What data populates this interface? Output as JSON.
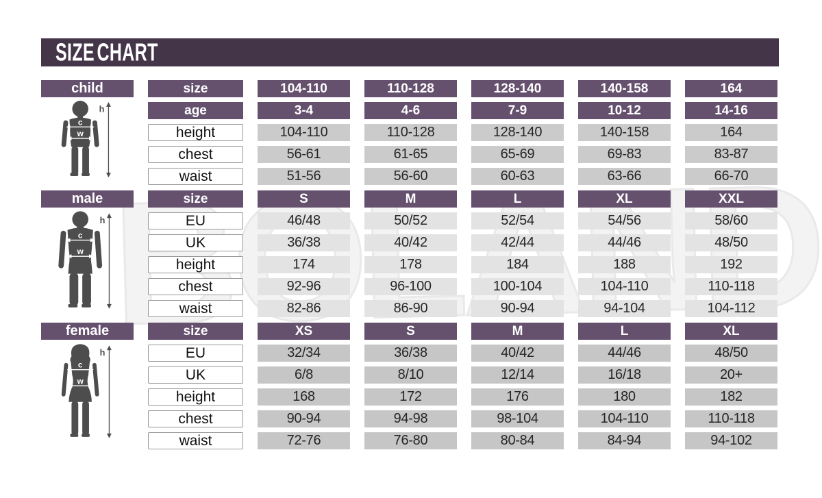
{
  "title": "SIZE CHART",
  "watermark": "BOLAND",
  "figure_labels": {
    "height": "h",
    "chest": "c",
    "waist": "w"
  },
  "colors": {
    "title_bar": "#453549",
    "purple_cell": "#65506e",
    "gray_cell_child": "#cbcbcb",
    "gray_cell_male": "#e3e3e3",
    "gray_cell_female": "#c6c6c6",
    "silhouette": "#4d4d4d"
  },
  "chart_data": [
    {
      "type": "table",
      "title": "child",
      "rows": [
        {
          "label": "size",
          "type": "header",
          "values": [
            "104-110",
            "110-128",
            "128-140",
            "140-158",
            "164"
          ]
        },
        {
          "label": "age",
          "type": "header",
          "values": [
            "3-4",
            "4-6",
            "7-9",
            "10-12",
            "14-16"
          ]
        },
        {
          "label": "height",
          "type": "data",
          "values": [
            "104-110",
            "110-128",
            "128-140",
            "140-158",
            "164"
          ]
        },
        {
          "label": "chest",
          "type": "data",
          "values": [
            "56-61",
            "61-65",
            "65-69",
            "69-83",
            "83-87"
          ]
        },
        {
          "label": "waist",
          "type": "data",
          "values": [
            "51-56",
            "56-60",
            "60-63",
            "63-66",
            "66-70"
          ]
        }
      ]
    },
    {
      "type": "table",
      "title": "male",
      "rows": [
        {
          "label": "size",
          "type": "header",
          "values": [
            "S",
            "M",
            "L",
            "XL",
            "XXL"
          ]
        },
        {
          "label": "EU",
          "type": "data",
          "values": [
            "46/48",
            "50/52",
            "52/54",
            "54/56",
            "58/60"
          ]
        },
        {
          "label": "UK",
          "type": "data",
          "values": [
            "36/38",
            "40/42",
            "42/44",
            "44/46",
            "48/50"
          ]
        },
        {
          "label": "height",
          "type": "data",
          "values": [
            "174",
            "178",
            "184",
            "188",
            "192"
          ]
        },
        {
          "label": "chest",
          "type": "data",
          "values": [
            "92-96",
            "96-100",
            "100-104",
            "104-110",
            "110-118"
          ]
        },
        {
          "label": "waist",
          "type": "data",
          "values": [
            "82-86",
            "86-90",
            "90-94",
            "94-104",
            "104-112"
          ]
        }
      ]
    },
    {
      "type": "table",
      "title": "female",
      "rows": [
        {
          "label": "size",
          "type": "header",
          "values": [
            "XS",
            "S",
            "M",
            "L",
            "XL"
          ]
        },
        {
          "label": "EU",
          "type": "data",
          "values": [
            "32/34",
            "36/38",
            "40/42",
            "44/46",
            "48/50"
          ]
        },
        {
          "label": "UK",
          "type": "data",
          "values": [
            "6/8",
            "8/10",
            "12/14",
            "16/18",
            "20+"
          ]
        },
        {
          "label": "height",
          "type": "data",
          "values": [
            "168",
            "172",
            "176",
            "180",
            "182"
          ]
        },
        {
          "label": "chest",
          "type": "data",
          "values": [
            "90-94",
            "94-98",
            "98-104",
            "104-110",
            "110-118"
          ]
        },
        {
          "label": "waist",
          "type": "data",
          "values": [
            "72-76",
            "76-80",
            "80-84",
            "84-94",
            "94-102"
          ]
        }
      ]
    }
  ]
}
